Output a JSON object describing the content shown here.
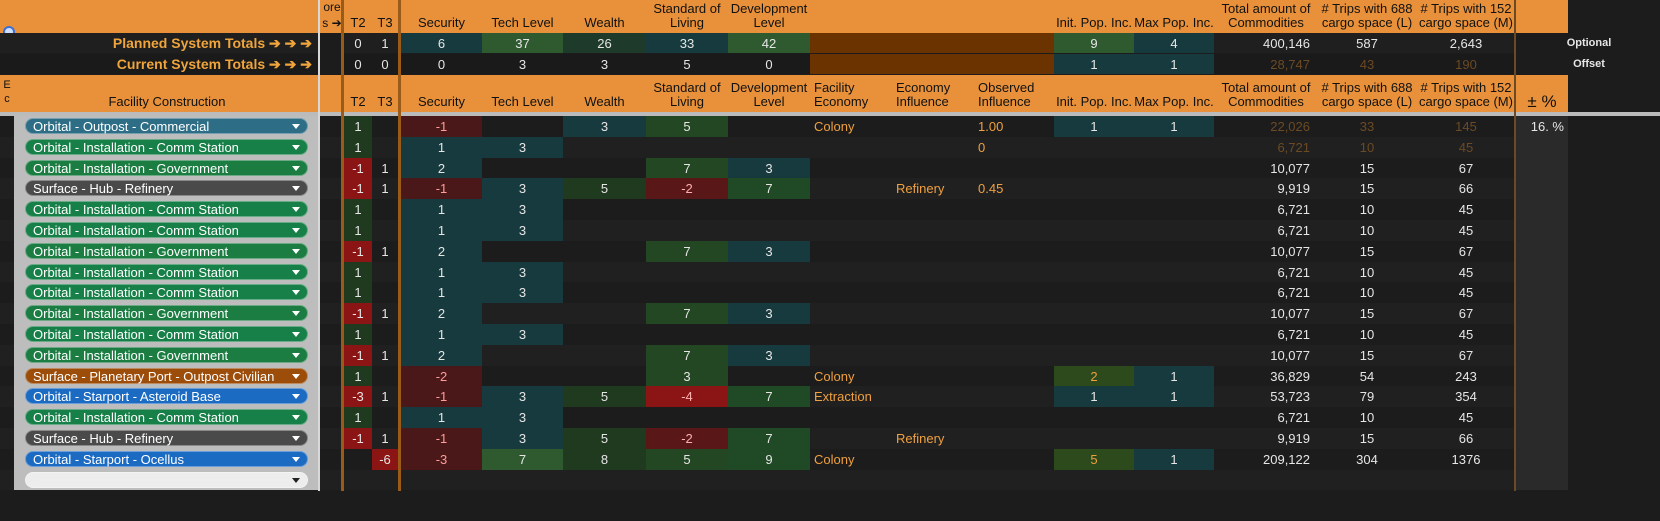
{
  "header_top": {
    "more_label": "ore",
    "more_arrow": "s ➔",
    "cols": [
      "T2",
      "T3",
      "Security",
      "Tech Level",
      "Wealth",
      "Standard of Living",
      "Development Level",
      "Init. Pop. Inc.",
      "Max Pop. Inc.",
      "Total amount of Commodities",
      "# Trips with 688 cargo space (L)",
      "# Trips with 152 cargo space (M)"
    ]
  },
  "planned": {
    "label": "Planned System Totals ➔ ➔ ➔",
    "t2": "0",
    "t3": "1",
    "security": "6",
    "tech": "37",
    "wealth": "26",
    "sol": "33",
    "dev": "42",
    "init_pop": "9",
    "max_pop": "4",
    "total": "400,146",
    "trips_l": "587",
    "trips_m": "2,643",
    "side": "Optional"
  },
  "current": {
    "label": "Current System Totals ➔ ➔ ➔",
    "t2": "0",
    "t3": "0",
    "security": "0",
    "tech": "3",
    "wealth": "3",
    "sol": "5",
    "dev": "0",
    "init_pop": "1",
    "max_pop": "1",
    "total": "28,747",
    "trips_l": "43",
    "trips_m": "190",
    "side": "Offset"
  },
  "header_main": {
    "e_label": "E c",
    "facility": "Facility Construction",
    "cols": [
      "T2",
      "T3",
      "Security",
      "Tech Level",
      "Wealth",
      "Standard of Living",
      "Development Level",
      "Facility Economy",
      "Economy Influence",
      "Observed Influence",
      "Init. Pop. Inc.",
      "Max Pop. Inc.",
      "Total amount of Commodities",
      "# Trips with 688 cargo space (L)",
      "# Trips with 152 cargo space (M)",
      "± %"
    ]
  },
  "rows": [
    {
      "facility": "Orbital - Outpost - Commercial",
      "kind": "commercial",
      "t2": "1",
      "t3": "",
      "sec": "-1",
      "tech": "",
      "wealth": "3",
      "sol": "5",
      "dev": "",
      "econ": "Colony",
      "infl": "",
      "obs": "1.00",
      "init": "1",
      "max": "1",
      "total": "22,026",
      "l": "33",
      "m": "145",
      "pct": "16. %",
      "muted": true
    },
    {
      "facility": "Orbital - Installation - Comm Station",
      "kind": "commstation",
      "t2": "1",
      "t3": "",
      "sec": "1",
      "tech": "3",
      "wealth": "",
      "sol": "",
      "dev": "",
      "econ": "",
      "infl": "",
      "obs": "0",
      "init": "",
      "max": "",
      "total": "6,721",
      "l": "10",
      "m": "45",
      "pct": "",
      "muted": true
    },
    {
      "facility": "Orbital - Installation - Government",
      "kind": "government",
      "t2": "-1",
      "t3": "1",
      "sec": "2",
      "tech": "",
      "wealth": "",
      "sol": "7",
      "dev": "3",
      "econ": "",
      "infl": "",
      "obs": "",
      "init": "",
      "max": "",
      "total": "10,077",
      "l": "15",
      "m": "67",
      "pct": ""
    },
    {
      "facility": "Surface - Hub - Refinery",
      "kind": "refinery",
      "t2": "-1",
      "t3": "1",
      "sec": "-1",
      "tech": "3",
      "wealth": "5",
      "sol": "-2",
      "dev": "7",
      "econ": "",
      "infl": "Refinery",
      "obs": "0.45",
      "init": "",
      "max": "",
      "total": "9,919",
      "l": "15",
      "m": "66",
      "pct": ""
    },
    {
      "facility": "Orbital - Installation - Comm Station",
      "kind": "commstation",
      "t2": "1",
      "t3": "",
      "sec": "1",
      "tech": "3",
      "wealth": "",
      "sol": "",
      "dev": "",
      "econ": "",
      "infl": "",
      "obs": "",
      "init": "",
      "max": "",
      "total": "6,721",
      "l": "10",
      "m": "45",
      "pct": ""
    },
    {
      "facility": "Orbital - Installation - Comm Station",
      "kind": "commstation",
      "t2": "1",
      "t3": "",
      "sec": "1",
      "tech": "3",
      "wealth": "",
      "sol": "",
      "dev": "",
      "econ": "",
      "infl": "",
      "obs": "",
      "init": "",
      "max": "",
      "total": "6,721",
      "l": "10",
      "m": "45",
      "pct": ""
    },
    {
      "facility": "Orbital - Installation - Government",
      "kind": "government",
      "t2": "-1",
      "t3": "1",
      "sec": "2",
      "tech": "",
      "wealth": "",
      "sol": "7",
      "dev": "3",
      "econ": "",
      "infl": "",
      "obs": "",
      "init": "",
      "max": "",
      "total": "10,077",
      "l": "15",
      "m": "67",
      "pct": ""
    },
    {
      "facility": "Orbital - Installation - Comm Station",
      "kind": "commstation",
      "t2": "1",
      "t3": "",
      "sec": "1",
      "tech": "3",
      "wealth": "",
      "sol": "",
      "dev": "",
      "econ": "",
      "infl": "",
      "obs": "",
      "init": "",
      "max": "",
      "total": "6,721",
      "l": "10",
      "m": "45",
      "pct": ""
    },
    {
      "facility": "Orbital - Installation - Comm Station",
      "kind": "commstation",
      "t2": "1",
      "t3": "",
      "sec": "1",
      "tech": "3",
      "wealth": "",
      "sol": "",
      "dev": "",
      "econ": "",
      "infl": "",
      "obs": "",
      "init": "",
      "max": "",
      "total": "6,721",
      "l": "10",
      "m": "45",
      "pct": ""
    },
    {
      "facility": "Orbital - Installation - Government",
      "kind": "government",
      "t2": "-1",
      "t3": "1",
      "sec": "2",
      "tech": "",
      "wealth": "",
      "sol": "7",
      "dev": "3",
      "econ": "",
      "infl": "",
      "obs": "",
      "init": "",
      "max": "",
      "total": "10,077",
      "l": "15",
      "m": "67",
      "pct": ""
    },
    {
      "facility": "Orbital - Installation - Comm Station",
      "kind": "commstation",
      "t2": "1",
      "t3": "",
      "sec": "1",
      "tech": "3",
      "wealth": "",
      "sol": "",
      "dev": "",
      "econ": "",
      "infl": "",
      "obs": "",
      "init": "",
      "max": "",
      "total": "6,721",
      "l": "10",
      "m": "45",
      "pct": ""
    },
    {
      "facility": "Orbital - Installation - Government",
      "kind": "government",
      "t2": "-1",
      "t3": "1",
      "sec": "2",
      "tech": "",
      "wealth": "",
      "sol": "7",
      "dev": "3",
      "econ": "",
      "infl": "",
      "obs": "",
      "init": "",
      "max": "",
      "total": "10,077",
      "l": "15",
      "m": "67",
      "pct": ""
    },
    {
      "facility": "Surface - Planetary Port - Outpost Civilian",
      "kind": "port",
      "t2": "1",
      "t3": "",
      "sec": "-2",
      "tech": "",
      "wealth": "",
      "sol": "3",
      "dev": "",
      "econ": "Colony",
      "infl": "",
      "obs": "",
      "init": "2",
      "max": "1",
      "total": "36,829",
      "l": "54",
      "m": "243",
      "pct": ""
    },
    {
      "facility": "Orbital - Starport - Asteroid Base",
      "kind": "starport",
      "t2": "-3",
      "t3": "1",
      "sec": "-1",
      "tech": "3",
      "wealth": "5",
      "sol": "-4",
      "dev": "7",
      "econ": "Extraction",
      "infl": "",
      "obs": "",
      "init": "1",
      "max": "1",
      "total": "53,723",
      "l": "79",
      "m": "354",
      "pct": ""
    },
    {
      "facility": "Orbital - Installation - Comm Station",
      "kind": "commstation",
      "t2": "1",
      "t3": "",
      "sec": "1",
      "tech": "3",
      "wealth": "",
      "sol": "",
      "dev": "",
      "econ": "",
      "infl": "",
      "obs": "",
      "init": "",
      "max": "",
      "total": "6,721",
      "l": "10",
      "m": "45",
      "pct": ""
    },
    {
      "facility": "Surface - Hub - Refinery",
      "kind": "refinery",
      "t2": "-1",
      "t3": "1",
      "sec": "-1",
      "tech": "3",
      "wealth": "5",
      "sol": "-2",
      "dev": "7",
      "econ": "",
      "infl": "Refinery",
      "obs": "",
      "init": "",
      "max": "",
      "total": "9,919",
      "l": "15",
      "m": "66",
      "pct": ""
    },
    {
      "facility": "Orbital - Starport - Ocellus",
      "kind": "starport",
      "t2": "",
      "t3": "-6",
      "sec": "-3",
      "tech": "7",
      "wealth": "8",
      "sol": "5",
      "dev": "9",
      "econ": "Colony",
      "infl": "",
      "obs": "",
      "init": "5",
      "max": "1",
      "total": "209,122",
      "l": "304",
      "m": "1376",
      "pct": ""
    },
    {
      "facility": "",
      "kind": "empty",
      "t2": "",
      "t3": "",
      "sec": "",
      "tech": "",
      "wealth": "",
      "sol": "",
      "dev": "",
      "econ": "",
      "infl": "",
      "obs": "",
      "init": "",
      "max": "",
      "total": "",
      "l": "",
      "m": "",
      "pct": ""
    }
  ],
  "colors": {
    "accent_orange": "#e8913a",
    "negative_red": "#6e1212",
    "teal": "#173a3e",
    "green": "#234723"
  }
}
